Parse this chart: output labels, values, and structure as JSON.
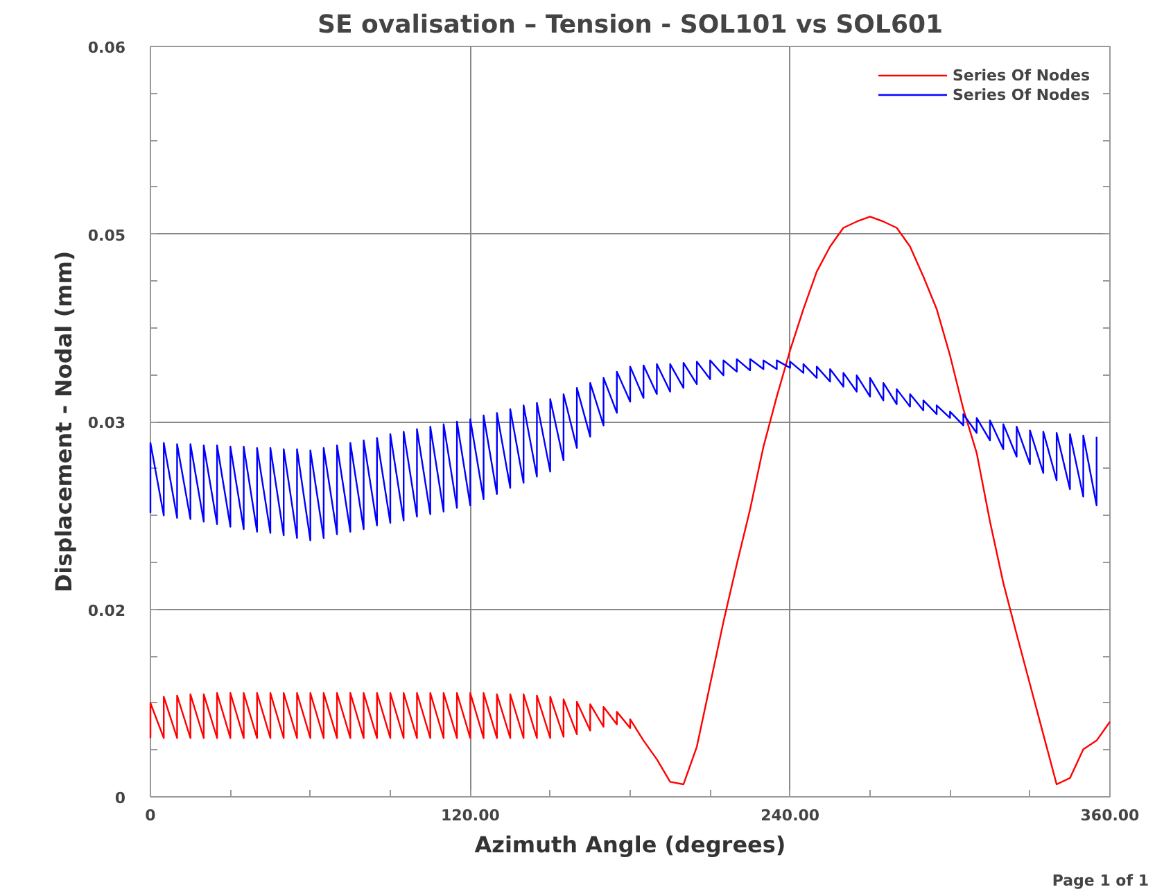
{
  "chart_data": {
    "type": "line",
    "title": "SE ovalisation – Tension - SOL101 vs SOL601",
    "xlabel": "Azimuth Angle (degrees)",
    "ylabel": "Displacement - Nodal (mm)",
    "annotations": [
      "Page 1 of 1"
    ],
    "xlim": [
      0,
      360
    ],
    "ylim": [
      0,
      0.06
    ],
    "xticks": [
      {
        "value": 0,
        "label": "0"
      },
      {
        "value": 30,
        "label": null
      },
      {
        "value": 60,
        "label": null
      },
      {
        "value": 90,
        "label": null
      },
      {
        "value": 120,
        "label": "120.00"
      },
      {
        "value": 150,
        "label": null
      },
      {
        "value": 180,
        "label": null
      },
      {
        "value": 210,
        "label": null
      },
      {
        "value": 240,
        "label": "240.00"
      },
      {
        "value": 270,
        "label": null
      },
      {
        "value": 300,
        "label": null
      },
      {
        "value": 330,
        "label": null
      },
      {
        "value": 360,
        "label": "360.00"
      }
    ],
    "yticks": [
      0,
      {
        "value": 0.00375,
        "label": null
      },
      {
        "value": 0.0075,
        "label": null
      },
      {
        "value": 0.01125,
        "label": null
      },
      {
        "value": 0.015,
        "label": "0.02"
      },
      {
        "value": 0.01875,
        "label": null
      },
      {
        "value": 0.0225,
        "label": null
      },
      {
        "value": 0.02625,
        "label": null
      },
      {
        "value": 0.03,
        "label": "0.03"
      },
      {
        "value": 0.03375,
        "label": null
      },
      {
        "value": 0.0375,
        "label": null
      },
      {
        "value": 0.04125,
        "label": null
      },
      {
        "value": 0.045,
        "label": "0.05"
      },
      {
        "value": 0.04875,
        "label": null
      },
      {
        "value": 0.0525,
        "label": null
      },
      {
        "value": 0.05625,
        "label": null
      },
      {
        "value": 0.06,
        "label": "0.06"
      }
    ],
    "grid": true,
    "legend": "top right",
    "marker": "none",
    "line_style": "solid",
    "series": [
      {
        "name": "Series Of Nodes",
        "color": "#ff0000",
        "x": [
          0,
          0,
          5,
          5,
          10,
          10,
          15,
          15,
          20,
          20,
          25,
          25,
          30,
          30,
          35,
          35,
          40,
          40,
          45,
          45,
          50,
          50,
          55,
          55,
          60,
          60,
          65,
          65,
          70,
          70,
          75,
          75,
          80,
          80,
          85,
          85,
          90,
          90,
          95,
          95,
          100,
          100,
          105,
          105,
          110,
          110,
          115,
          115,
          120,
          120,
          125,
          125,
          130,
          130,
          135,
          135,
          140,
          140,
          145,
          145,
          150,
          150,
          155,
          155,
          160,
          160,
          165,
          165,
          170,
          170,
          175,
          175,
          180,
          180,
          185,
          190,
          195,
          200,
          205,
          210,
          215,
          220,
          225,
          230,
          235,
          240,
          245,
          250,
          255,
          260,
          265,
          270,
          275,
          280,
          285,
          290,
          295,
          300,
          305,
          310,
          315,
          320,
          325,
          330,
          335,
          340,
          345,
          350,
          355,
          360
        ],
        "values": [
          0.0047,
          0.0075,
          0.0047,
          0.008,
          0.0047,
          0.0081,
          0.0047,
          0.0082,
          0.0047,
          0.0082,
          0.0047,
          0.0083,
          0.0047,
          0.0083,
          0.0047,
          0.0083,
          0.0047,
          0.0083,
          0.0047,
          0.0083,
          0.0047,
          0.0083,
          0.0047,
          0.0083,
          0.0047,
          0.0083,
          0.0047,
          0.0083,
          0.0047,
          0.0083,
          0.0047,
          0.0083,
          0.0047,
          0.0083,
          0.0047,
          0.0083,
          0.0047,
          0.0083,
          0.0047,
          0.0083,
          0.0047,
          0.0083,
          0.0047,
          0.0083,
          0.0047,
          0.0083,
          0.0047,
          0.0083,
          0.0047,
          0.0083,
          0.0047,
          0.0083,
          0.0047,
          0.0082,
          0.0047,
          0.0082,
          0.0047,
          0.0082,
          0.0047,
          0.0081,
          0.0047,
          0.008,
          0.0048,
          0.0078,
          0.005,
          0.0076,
          0.0053,
          0.0074,
          0.0056,
          0.0072,
          0.0058,
          0.0068,
          0.0055,
          0.0062,
          0.0045,
          0.003,
          0.0012,
          0.001,
          0.004,
          0.009,
          0.014,
          0.0186,
          0.023,
          0.028,
          0.032,
          0.0357,
          0.039,
          0.042,
          0.044,
          0.0455,
          0.046,
          0.0464,
          0.046,
          0.0455,
          0.044,
          0.0416,
          0.039,
          0.0353,
          0.031,
          0.0275,
          0.022,
          0.0171,
          0.013,
          0.009,
          0.005,
          0.001,
          0.0015,
          0.0038,
          0.0045,
          0.006
        ]
      },
      {
        "name": "Series Of Nodes",
        "color": "#0000ff",
        "x": [
          0,
          0,
          5,
          5,
          10,
          10,
          15,
          15,
          20,
          20,
          25,
          25,
          30,
          30,
          35,
          35,
          40,
          40,
          45,
          45,
          50,
          50,
          55,
          55,
          60,
          60,
          65,
          65,
          70,
          70,
          75,
          75,
          80,
          80,
          85,
          85,
          90,
          90,
          95,
          95,
          100,
          100,
          105,
          105,
          110,
          110,
          115,
          115,
          120,
          120,
          125,
          125,
          130,
          130,
          135,
          135,
          140,
          140,
          145,
          145,
          150,
          150,
          155,
          155,
          160,
          160,
          165,
          165,
          170,
          170,
          175,
          175,
          180,
          180,
          185,
          185,
          190,
          190,
          195,
          195,
          200,
          200,
          205,
          205,
          210,
          210,
          215,
          215,
          220,
          220,
          225,
          225,
          230,
          230,
          235,
          235,
          240,
          240,
          245,
          245,
          250,
          250,
          255,
          255,
          260,
          260,
          265,
          265,
          270,
          270,
          275,
          275,
          280,
          280,
          285,
          285,
          290,
          290,
          295,
          295,
          300,
          300,
          305,
          305,
          310,
          310,
          315,
          315,
          320,
          320,
          325,
          325,
          330,
          330,
          335,
          335,
          340,
          340,
          345,
          345,
          350,
          350,
          355,
          355
        ],
        "values": [
          0.0227,
          0.0283,
          0.0225,
          0.0283,
          0.0223,
          0.0282,
          0.0222,
          0.0282,
          0.022,
          0.0281,
          0.0218,
          0.0281,
          0.0216,
          0.028,
          0.0214,
          0.028,
          0.0212,
          0.0279,
          0.0211,
          0.0279,
          0.0209,
          0.0278,
          0.0207,
          0.0278,
          0.0205,
          0.0277,
          0.0207,
          0.0279,
          0.021,
          0.0281,
          0.0212,
          0.0283,
          0.0214,
          0.0285,
          0.0217,
          0.0287,
          0.0219,
          0.029,
          0.0221,
          0.0292,
          0.0224,
          0.0294,
          0.0226,
          0.0296,
          0.0228,
          0.0298,
          0.0231,
          0.03,
          0.0233,
          0.0302,
          0.0238,
          0.0305,
          0.0242,
          0.0307,
          0.0247,
          0.031,
          0.0251,
          0.0313,
          0.0256,
          0.0315,
          0.026,
          0.0318,
          0.0269,
          0.0322,
          0.0279,
          0.0327,
          0.0288,
          0.0331,
          0.0297,
          0.0335,
          0.0307,
          0.034,
          0.0316,
          0.0344,
          0.0319,
          0.0345,
          0.0322,
          0.0346,
          0.0324,
          0.0346,
          0.0327,
          0.0347,
          0.033,
          0.0348,
          0.0334,
          0.0349,
          0.0337,
          0.0349,
          0.034,
          0.035,
          0.0341,
          0.035,
          0.0342,
          0.0349,
          0.0342,
          0.0349,
          0.0343,
          0.0348,
          0.0339,
          0.0346,
          0.0335,
          0.0344,
          0.0332,
          0.0342,
          0.0328,
          0.0339,
          0.0324,
          0.0337,
          0.032,
          0.0335,
          0.0317,
          0.0331,
          0.0314,
          0.0326,
          0.0312,
          0.0322,
          0.0309,
          0.0317,
          0.0306,
          0.0313,
          0.0303,
          0.0308,
          0.0297,
          0.0306,
          0.0291,
          0.0303,
          0.0285,
          0.0301,
          0.0278,
          0.0298,
          0.0272,
          0.0296,
          0.0266,
          0.0293,
          0.0259,
          0.0292,
          0.0253,
          0.0291,
          0.0246,
          0.029,
          0.024,
          0.0289,
          0.0233,
          0.0288
        ]
      }
    ]
  }
}
